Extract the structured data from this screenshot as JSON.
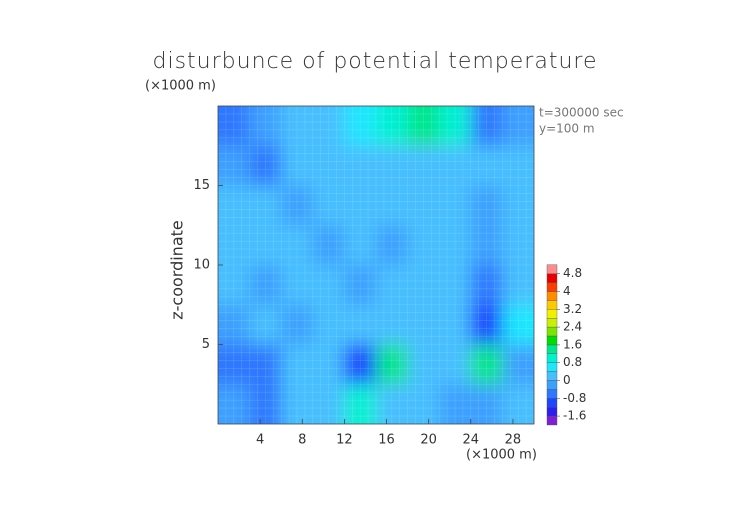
{
  "chart_data": {
    "type": "contour",
    "title": "disturbunce of potential temperature",
    "y_unit_label": "(×1000 m)",
    "x_unit_label": "(×1000 m)",
    "ylabel": "z-coordinate",
    "annotations": [
      "t=300000 sec",
      "y=100 m"
    ],
    "xlim": [
      0,
      30
    ],
    "ylim": [
      0,
      20
    ],
    "xticks": [
      4,
      8,
      12,
      16,
      20,
      24,
      28
    ],
    "yticks": [
      5,
      10,
      15
    ],
    "x": [
      1.5,
      4.5,
      7.5,
      10.5,
      13.5,
      16.5,
      19.5,
      22.5,
      25.5,
      28.5
    ],
    "y": [
      1.25,
      3.75,
      6.25,
      8.75,
      11.25,
      13.75,
      16.25,
      18.75
    ],
    "z": [
      [
        -0.4,
        -0.6,
        0.1,
        0.2,
        1.0,
        0.3,
        0.1,
        -0.3,
        -0.4,
        0.0
      ],
      [
        -0.6,
        -0.5,
        0.3,
        0.2,
        -0.9,
        1.4,
        0.1,
        0.2,
        1.2,
        -0.2
      ],
      [
        -0.4,
        0.1,
        -0.1,
        0.2,
        0.3,
        0.1,
        0.1,
        0.0,
        -1.0,
        0.6
      ],
      [
        0.2,
        -0.4,
        0.1,
        0.2,
        -0.3,
        0.1,
        0.0,
        0.2,
        -0.5,
        0.2
      ],
      [
        0.1,
        0.2,
        0.1,
        -0.4,
        0.3,
        -0.1,
        0.2,
        0.3,
        -0.2,
        0.1
      ],
      [
        0.0,
        0.1,
        -0.3,
        0.2,
        0.3,
        0.1,
        0.1,
        0.2,
        -0.3,
        0.1
      ],
      [
        -0.2,
        -0.5,
        0.1,
        0.3,
        0.2,
        0.3,
        0.2,
        0.1,
        0.0,
        0.1
      ],
      [
        -0.6,
        -0.3,
        0.1,
        0.2,
        0.6,
        1.0,
        1.2,
        0.8,
        -0.8,
        -0.2
      ]
    ],
    "levels": [
      -1.6,
      -1.2,
      -0.8,
      -0.4,
      0,
      0.4,
      0.8,
      1.2,
      1.6,
      2.0,
      2.4,
      2.8,
      3.2,
      3.6,
      4.0,
      4.4,
      4.8
    ],
    "colors": [
      "#7e1fd6",
      "#2a1ef0",
      "#1e46ff",
      "#2d78ff",
      "#3ca0ff",
      "#46bfff",
      "#1ee6ff",
      "#00f0d2",
      "#00e68c",
      "#00dc00",
      "#7ae600",
      "#c8f000",
      "#f0f000",
      "#ffc800",
      "#ff8c00",
      "#ff3c00",
      "#e60000",
      "#ff8c8c"
    ],
    "colorbar_ticks": [
      -1.6,
      -0.8,
      0,
      0.8,
      1.6,
      2.4,
      3.2,
      4,
      4.8
    ]
  }
}
